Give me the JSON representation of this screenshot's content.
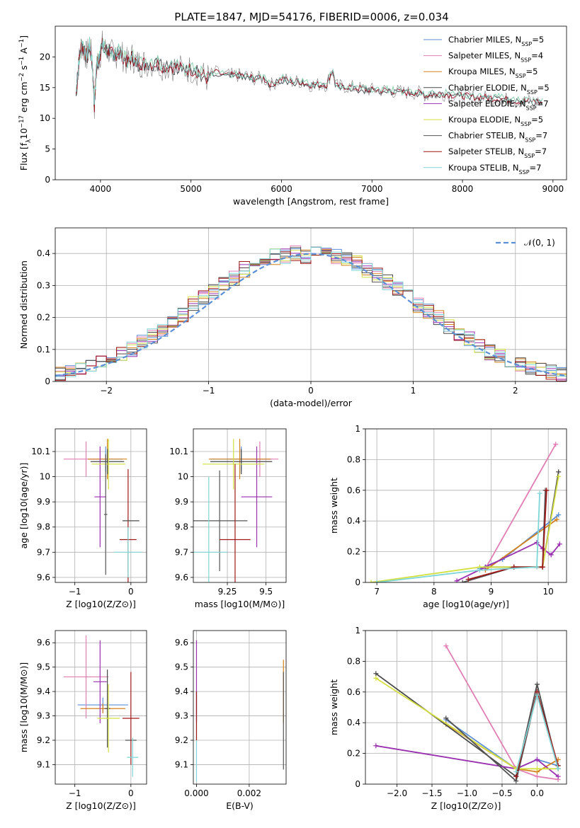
{
  "figure": {
    "title": "PLATE=1847, MJD=54176, FIBERID=0006, z=0.034"
  },
  "colors": {
    "Chabrier MILES": "#5b8fd6",
    "Salpeter MILES": "#e17fb4",
    "Kroupa MILES": "#d4821e",
    "Chabrier ELODIE": "#4a4a4a",
    "Salpeter ELODIE": "#9a2fb0",
    "Kroupa ELODIE": "#d4e040",
    "Chabrier STELIB": "#555555",
    "Salpeter STELIB": "#a01818",
    "Kroupa STELIB": "#7fd6d6"
  },
  "chart_data": [
    {
      "id": "spectrum",
      "type": "line",
      "title": "PLATE=1847, MJD=54176, FIBERID=0006, z=0.034",
      "xlabel": "wavelength [Angstrom, rest frame]",
      "ylabel_parts": [
        "Flux [f",
        "λ",
        "10",
        "−17",
        " erg cm",
        "−2",
        " s",
        "−1",
        " A",
        "−1",
        "]"
      ],
      "xlim": [
        3500,
        9150
      ],
      "ylim": [
        0,
        25
      ],
      "xticks": [
        4000,
        5000,
        6000,
        7000,
        8000,
        9000
      ],
      "yticks": [
        0,
        5,
        10,
        15,
        20
      ],
      "grid": false,
      "legend_position": "top-right",
      "legend": [
        {
          "name": "Chabrier MILES",
          "n": "5"
        },
        {
          "name": "Salpeter MILES",
          "n": "4"
        },
        {
          "name": "Kroupa MILES",
          "n": "5"
        },
        {
          "name": "Chabrier ELODIE",
          "n": "5"
        },
        {
          "name": "Salpeter ELODIE",
          "n": "7"
        },
        {
          "name": "Kroupa ELODIE",
          "n": "5"
        },
        {
          "name": "Chabrier STELIB",
          "n": "7"
        },
        {
          "name": "Salpeter STELIB",
          "n": "7"
        },
        {
          "name": "Kroupa STELIB",
          "n": "7"
        }
      ],
      "legend_n_label": "N",
      "legend_n_sub": "SSP",
      "series": [
        {
          "name": "data",
          "color": "#808080",
          "x": [
            3730,
            3760,
            3790,
            3820,
            3850,
            3880,
            3910,
            3933,
            3960,
            3990,
            4020,
            4060,
            4100,
            4150,
            4200,
            4250,
            4300,
            4350,
            4400,
            4450,
            4500,
            4600,
            4700,
            4800,
            4900,
            5000,
            5100,
            5175,
            5250,
            5400,
            5500,
            5600,
            5700,
            5800,
            5890,
            6000,
            6100,
            6200,
            6300,
            6400,
            6500,
            6563,
            6600,
            6700,
            6800,
            6900,
            7000,
            7100,
            7200,
            7300,
            7400,
            7500,
            7600,
            7700,
            7800,
            7900,
            8000,
            8100,
            8200,
            8300,
            8400,
            8500,
            8600,
            8700,
            8800,
            8900
          ],
          "y": [
            14,
            19,
            22,
            21,
            20,
            22,
            19,
            12,
            19,
            20,
            22,
            21,
            21,
            20,
            21,
            20,
            19,
            20,
            19,
            19,
            19,
            19,
            18.5,
            18.5,
            18,
            18,
            17.5,
            16.5,
            17.5,
            17,
            17,
            17,
            16.5,
            16.5,
            15.5,
            16.5,
            16,
            16,
            15.5,
            15.5,
            15.5,
            18,
            15.2,
            15.2,
            15,
            14.8,
            14.6,
            14.6,
            14.5,
            14.3,
            14.2,
            14.2,
            13.8,
            14,
            14,
            13.8,
            13.7,
            13.5,
            13.5,
            13.3,
            13.3,
            13,
            12.8,
            12.8,
            12.8,
            12.5
          ]
        }
      ]
    },
    {
      "id": "residuals",
      "type": "histogram",
      "xlabel": "(data-model)/error",
      "ylabel": "Normed distribution",
      "xlim": [
        -2.5,
        2.5
      ],
      "ylim": [
        0,
        0.48
      ],
      "xticks": [
        -2,
        -1,
        0,
        1,
        2
      ],
      "yticks": [
        0.0,
        0.1,
        0.2,
        0.3,
        0.4
      ],
      "grid": true,
      "legend_position": "top-right",
      "legend_label": "𝒩(0, 1)",
      "bin_centers": [
        -2.45,
        -2.35,
        -2.25,
        -2.15,
        -2.05,
        -1.95,
        -1.85,
        -1.75,
        -1.65,
        -1.55,
        -1.45,
        -1.35,
        -1.25,
        -1.15,
        -1.05,
        -0.95,
        -0.85,
        -0.75,
        -0.65,
        -0.55,
        -0.45,
        -0.35,
        -0.25,
        -0.15,
        -0.05,
        0.05,
        0.15,
        0.25,
        0.35,
        0.45,
        0.55,
        0.65,
        0.75,
        0.85,
        0.95,
        1.05,
        1.15,
        1.25,
        1.35,
        1.45,
        1.55,
        1.65,
        1.75,
        1.85,
        1.95,
        2.05,
        2.15,
        2.25,
        2.35,
        2.45
      ],
      "base_values": [
        0.025,
        0.03,
        0.04,
        0.05,
        0.06,
        0.08,
        0.09,
        0.1,
        0.12,
        0.14,
        0.16,
        0.19,
        0.21,
        0.24,
        0.26,
        0.28,
        0.3,
        0.32,
        0.35,
        0.37,
        0.38,
        0.39,
        0.39,
        0.4,
        0.39,
        0.4,
        0.41,
        0.39,
        0.38,
        0.37,
        0.35,
        0.33,
        0.31,
        0.29,
        0.27,
        0.24,
        0.22,
        0.2,
        0.17,
        0.15,
        0.13,
        0.11,
        0.09,
        0.08,
        0.06,
        0.05,
        0.04,
        0.035,
        0.03,
        0.025
      ],
      "normal_curve": {
        "mean": 0,
        "sigma": 1
      }
    },
    {
      "id": "age-vs-Z",
      "type": "scatter",
      "xlabel": "Z [log10(Z/Z⊙)]",
      "ylabel": "age  [log10(age/yr)]",
      "xlim": [
        -1.35,
        0.28
      ],
      "ylim": [
        9.58,
        10.19
      ],
      "xticks": [
        -1,
        0
      ],
      "yticks": [
        9.6,
        9.7,
        9.8,
        9.9,
        10.0,
        10.1
      ],
      "grid": true,
      "points": [
        {
          "series": "Chabrier MILES",
          "x": -0.45,
          "y": 10.07,
          "xerr": 0.3,
          "yerr": 0.05
        },
        {
          "series": "Salpeter MILES",
          "x": -0.8,
          "y": 10.07,
          "xerr": 0.4,
          "yerr": 0.07
        },
        {
          "series": "Kroupa MILES",
          "x": -0.42,
          "y": 10.07,
          "xerr": 0.35,
          "yerr": 0.08
        },
        {
          "series": "Chabrier ELODIE",
          "x": -0.42,
          "y": 10.06,
          "xerr": 0.3,
          "yerr": 0.05
        },
        {
          "series": "Salpeter ELODIE",
          "x": -0.55,
          "y": 9.92,
          "xerr": 0.1,
          "yerr": 0.2
        },
        {
          "series": "Kroupa ELODIE",
          "x": -0.4,
          "y": 10.05,
          "xerr": 0.3,
          "yerr": 0.1
        },
        {
          "series": "Chabrier STELIB",
          "x": -0.45,
          "y": 9.85,
          "xerr": 0.03,
          "yerr": 0.24
        },
        {
          "series": "Salpeter STELIB",
          "x": -0.05,
          "y": 9.75,
          "xerr": 0.15,
          "yerr": 0.28
        },
        {
          "series": "Kroupa STELIB",
          "x": -0.05,
          "y": 9.7,
          "xerr": 0.25,
          "yerr": 0.1
        },
        {
          "series": "Chabrier ELODIE",
          "x": 0.0,
          "y": 9.825,
          "xerr": 0.15,
          "yerr": 0.0
        }
      ]
    },
    {
      "id": "age-vs-mass",
      "type": "scatter",
      "xlabel": "mass [log10(M/M⊙)]",
      "ylabel": "",
      "xlim": [
        9.03,
        9.63
      ],
      "ylim": [
        9.58,
        10.19
      ],
      "xticks": [
        9.25,
        9.5
      ],
      "yticks": [
        9.6,
        9.7,
        9.8,
        9.9,
        10.0,
        10.1
      ],
      "grid": true,
      "points": [
        {
          "series": "Chabrier MILES",
          "x": 9.34,
          "y": 10.07,
          "xerr": 0.2,
          "yerr": 0.05
        },
        {
          "series": "Salpeter MILES",
          "x": 9.46,
          "y": 10.07,
          "xerr": 0.12,
          "yerr": 0.07
        },
        {
          "series": "Kroupa MILES",
          "x": 9.33,
          "y": 10.07,
          "xerr": 0.2,
          "yerr": 0.08
        },
        {
          "series": "Chabrier ELODIE",
          "x": 9.34,
          "y": 10.06,
          "xerr": 0.2,
          "yerr": 0.05
        },
        {
          "series": "Salpeter ELODIE",
          "x": 9.44,
          "y": 9.92,
          "xerr": 0.1,
          "yerr": 0.2
        },
        {
          "series": "Kroupa ELODIE",
          "x": 9.29,
          "y": 10.05,
          "xerr": 0.2,
          "yerr": 0.1
        },
        {
          "series": "Chabrier STELIB",
          "x": 9.2,
          "y": 9.825,
          "xerr": 0.18,
          "yerr": 0.2
        },
        {
          "series": "Salpeter STELIB",
          "x": 9.3,
          "y": 9.75,
          "xerr": 0.1,
          "yerr": 0.3
        },
        {
          "series": "Kroupa STELIB",
          "x": 9.13,
          "y": 9.7,
          "xerr": 0.12,
          "yerr": 0.3
        }
      ]
    },
    {
      "id": "massweight-vs-age",
      "type": "line",
      "xlabel": "age  [log10(age/yr)]",
      "ylabel": "mass weight",
      "xlim": [
        6.8,
        10.32
      ],
      "ylim": [
        0,
        1
      ],
      "xticks": [
        7,
        8,
        9,
        10
      ],
      "yticks": [
        0.0,
        0.2,
        0.4,
        0.6,
        0.8,
        1.0
      ],
      "grid": true,
      "series": [
        {
          "name": "Chabrier MILES",
          "x": [
            8.8,
            9.2,
            10.18
          ],
          "y": [
            0.09,
            0.15,
            0.44
          ]
        },
        {
          "name": "Salpeter MILES",
          "x": [
            8.9,
            10.13
          ],
          "y": [
            0.09,
            0.9
          ]
        },
        {
          "name": "Kroupa MILES",
          "x": [
            8.9,
            10.15
          ],
          "y": [
            0.08,
            0.41
          ]
        },
        {
          "name": "Chabrier ELODIE",
          "x": [
            8.9,
            9.9,
            10.18
          ],
          "y": [
            0.1,
            0.1,
            0.72
          ]
        },
        {
          "name": "Salpeter ELODIE",
          "x": [
            8.4,
            8.9,
            9.8,
            9.9,
            10.05,
            10.2
          ],
          "y": [
            0.01,
            0.1,
            0.26,
            0.22,
            0.18,
            0.25
          ]
        },
        {
          "name": "Kroupa ELODIE",
          "x": [
            6.9,
            8.8,
            9.9,
            10.18
          ],
          "y": [
            0.0,
            0.1,
            0.1,
            0.69
          ]
        },
        {
          "name": "Chabrier STELIB",
          "x": [
            8.5,
            9.4,
            9.9,
            9.95
          ],
          "y": [
            0.0,
            0.1,
            0.1,
            0.6
          ]
        },
        {
          "name": "Salpeter STELIB",
          "x": [
            8.6,
            9.4,
            9.9,
            9.97
          ],
          "y": [
            0.02,
            0.1,
            0.1,
            0.6
          ]
        },
        {
          "name": "Kroupa STELIB",
          "x": [
            7.0,
            8.8,
            9.8,
            9.85
          ],
          "y": [
            0.0,
            0.08,
            0.1,
            0.58
          ]
        }
      ]
    },
    {
      "id": "mass-vs-Z",
      "type": "scatter",
      "xlabel": "Z [log10(Z/Z⊙)]",
      "ylabel": "mass [log10(M/M⊙)]",
      "xlim": [
        -1.35,
        0.28
      ],
      "ylim": [
        9.02,
        9.65
      ],
      "xticks": [
        -1,
        0
      ],
      "yticks": [
        9.1,
        9.2,
        9.3,
        9.4,
        9.5,
        9.6
      ],
      "grid": true,
      "points": [
        {
          "series": "Chabrier MILES",
          "x": -0.5,
          "y": 9.345,
          "xerr": 0.45,
          "yerr": 0.03
        },
        {
          "series": "Salpeter MILES",
          "x": -0.8,
          "y": 9.46,
          "xerr": 0.4,
          "yerr": 0.17
        },
        {
          "series": "Kroupa MILES",
          "x": -0.5,
          "y": 9.33,
          "xerr": 0.4,
          "yerr": 0.02
        },
        {
          "series": "Chabrier ELODIE",
          "x": -0.42,
          "y": 9.33,
          "xerr": 0.05,
          "yerr": 0.16
        },
        {
          "series": "Salpeter ELODIE",
          "x": -0.55,
          "y": 9.44,
          "xerr": 0.12,
          "yerr": 0.17
        },
        {
          "series": "Kroupa ELODIE",
          "x": -0.4,
          "y": 9.29,
          "xerr": 0.2,
          "yerr": 0.14
        },
        {
          "series": "Chabrier STELIB",
          "x": 0.0,
          "y": 9.2,
          "xerr": 0.1,
          "yerr": 0.0
        },
        {
          "series": "Salpeter STELIB",
          "x": 0.0,
          "y": 9.29,
          "xerr": 0.15,
          "yerr": 0.19
        },
        {
          "series": "Kroupa STELIB",
          "x": 0.03,
          "y": 9.13,
          "xerr": 0.1,
          "yerr": 0.08
        }
      ]
    },
    {
      "id": "mass-vs-ebv",
      "type": "scatter",
      "xlabel": "E(B-V)",
      "ylabel": "",
      "xlim": [
        -0.00012,
        0.0034
      ],
      "ylim": [
        9.02,
        9.65
      ],
      "xticks": [
        0.0,
        0.002
      ],
      "xtick_labels": [
        "0.000",
        "0.002"
      ],
      "yticks": [
        9.1,
        9.2,
        9.3,
        9.4,
        9.5,
        9.6
      ],
      "grid": true,
      "points": [
        {
          "series": "Salpeter ELODIE",
          "x": 0.0,
          "y": 9.44,
          "xerr": 0,
          "yerr": 0.17
        },
        {
          "series": "Chabrier MILES",
          "x": 0.0,
          "y": 9.34,
          "xerr": 0,
          "yerr": 0.06
        },
        {
          "series": "Kroupa STELIB",
          "x": 0.0,
          "y": 9.15,
          "xerr": 0,
          "yerr": 0.12
        },
        {
          "series": "Salpeter STELIB",
          "x": 0.0,
          "y": 9.3,
          "xerr": 0,
          "yerr": 0.1
        },
        {
          "series": "Kroupa MILES",
          "x": 0.0033,
          "y": 9.4,
          "xerr": 0,
          "yerr": 0.13
        },
        {
          "series": "Chabrier STELIB",
          "x": 0.0033,
          "y": 9.28,
          "xerr": 0,
          "yerr": 0.2
        }
      ]
    },
    {
      "id": "massweight-vs-Z",
      "type": "line",
      "xlabel": "Z [log10(Z/Z⊙)]",
      "ylabel": "mass weight",
      "xlim": [
        -2.45,
        0.42
      ],
      "ylim": [
        0,
        1
      ],
      "xticks": [
        -2.0,
        -1.5,
        -1.0,
        -0.5,
        0.0
      ],
      "xtick_labels": [
        "−2.0",
        "−1.5",
        "−1.0",
        "−0.5",
        "0.0"
      ],
      "yticks": [
        0.0,
        0.2,
        0.4,
        0.6,
        0.8,
        1.0
      ],
      "grid": true,
      "series": [
        {
          "name": "Chabrier MILES",
          "x": [
            -1.3,
            -0.3,
            0.0,
            0.3
          ],
          "y": [
            0.42,
            0.1,
            0.16,
            0.12
          ]
        },
        {
          "name": "Salpeter MILES",
          "x": [
            -1.3,
            -0.3,
            0.0,
            0.3
          ],
          "y": [
            0.9,
            0.1,
            0.05,
            0.03
          ]
        },
        {
          "name": "Kroupa MILES",
          "x": [
            -1.3,
            -0.3,
            0.0,
            0.3
          ],
          "y": [
            0.39,
            0.1,
            0.08,
            0.16
          ]
        },
        {
          "name": "Chabrier ELODIE",
          "x": [
            -2.3,
            -0.3,
            0.0,
            0.3
          ],
          "y": [
            0.72,
            0.05,
            0.65,
            0.1
          ]
        },
        {
          "name": "Salpeter ELODIE",
          "x": [
            -2.3,
            -0.3,
            0.0,
            0.3
          ],
          "y": [
            0.25,
            0.1,
            0.16,
            0.05
          ]
        },
        {
          "name": "Kroupa ELODIE",
          "x": [
            -2.3,
            -0.3,
            0.0,
            0.3
          ],
          "y": [
            0.69,
            0.1,
            0.1,
            0.1
          ]
        },
        {
          "name": "Chabrier STELIB",
          "x": [
            -1.3,
            -0.3,
            0.0,
            0.3
          ],
          "y": [
            0.43,
            0.02,
            0.6,
            0.1
          ]
        },
        {
          "name": "Salpeter STELIB",
          "x": [
            -0.3,
            0.0,
            0.3
          ],
          "y": [
            0.05,
            0.6,
            0.12
          ]
        },
        {
          "name": "Kroupa STELIB",
          "x": [
            -0.3,
            0.0,
            0.3
          ],
          "y": [
            0.08,
            0.58,
            0.1
          ]
        }
      ]
    }
  ]
}
